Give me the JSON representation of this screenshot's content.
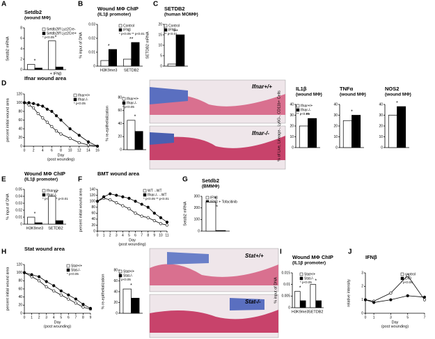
{
  "panel_labels": [
    "A",
    "B",
    "C",
    "D",
    "E",
    "F",
    "G",
    "H",
    "I",
    "J"
  ],
  "images": [
    "Ifnar+/+",
    "Ifnar-/-",
    "Stat+/+",
    "Stat-/-"
  ],
  "chart_data": [
    {
      "type": "bar",
      "title": "Setdb2",
      "subtitle": "(wound MΦ)",
      "ylabel": "Setdb2 mRNA",
      "categories": [
        null,
        "+ IFNβ"
      ],
      "series": [
        {
          "name": "Setdb2f/f Lyz2Cre-",
          "color": "#ffffff",
          "values": [
            1,
            5.5
          ]
        },
        {
          "name": "Setdb2f/f Lyz2Cre+",
          "color": "#000000",
          "values": [
            0.3,
            0.5
          ]
        }
      ],
      "note": "* p<0.05",
      "stars": [
        "*",
        "*"
      ],
      "ylim": [
        0,
        8
      ],
      "yticks": [
        0,
        2,
        4,
        6,
        8
      ]
    },
    {
      "type": "bar",
      "title": "Wound MΦ ChIP",
      "subtitle": "(IL1β promoter)",
      "ylabel": "% input of DNA",
      "categories": [
        "H3K9me3",
        "SETDB2"
      ],
      "series": [
        {
          "name": "Control",
          "color": "#ffffff",
          "values": [
            0.004,
            0.005
          ]
        },
        {
          "name": "IFNβ",
          "color": "#000000",
          "values": [
            0.012,
            0.017
          ]
        }
      ],
      "note": "* p<0.05 ** p<0.01",
      "stars": [
        "*",
        "**"
      ],
      "ylim": [
        0,
        0.03
      ],
      "yticks": [
        0,
        0.01,
        0.02,
        0.03
      ]
    },
    {
      "type": "bar",
      "title": "SETDB2",
      "subtitle": "(human MOMΦ)",
      "ylabel": "SETDB2 mRNA",
      "categories": [
        null
      ],
      "series": [
        {
          "name": "Control",
          "color": "#ffffff",
          "values": [
            1
          ]
        },
        {
          "name": "IFNβ",
          "color": "#000000",
          "values": [
            15
          ]
        }
      ],
      "note": "** p<0.01",
      "stars": [
        "**"
      ],
      "ylim": [
        0,
        20
      ],
      "yticks": [
        0,
        5,
        10,
        15,
        20
      ]
    },
    {
      "type": "line",
      "title": "Ifnar wound area",
      "ylabel": "percent initial wound area",
      "xlabel": "Day",
      "xlabel_sub": "(post wounding)",
      "x": [
        0,
        1,
        2,
        3,
        4,
        5,
        6,
        7,
        8,
        10,
        12,
        14,
        16
      ],
      "series": [
        {
          "name": "Ifnar+/+",
          "color": "#ffffff",
          "values": [
            100,
            95,
            88,
            75,
            65,
            55,
            45,
            35,
            28,
            18,
            8,
            3,
            0
          ]
        },
        {
          "name": "Ifnar-/-",
          "color": "#000000",
          "values": [
            100,
            100,
            98,
            95,
            92,
            85,
            80,
            70,
            60,
            40,
            25,
            10,
            0
          ]
        }
      ],
      "note": "* p<0.05",
      "xlim": [
        0,
        16
      ],
      "xticks": [
        0,
        2,
        4,
        6,
        8,
        10,
        12,
        14,
        16
      ],
      "ylim": [
        0,
        120
      ],
      "yticks": [
        0,
        20,
        40,
        60,
        80,
        100,
        120
      ]
    },
    {
      "type": "bar",
      "ylabel": "% re-epithelialization",
      "categories": [
        null
      ],
      "series": [
        {
          "name": "Ifnar+/+",
          "color": "#ffffff",
          "values": [
            45
          ]
        },
        {
          "name": "Ifnar-/-",
          "color": "#000000",
          "values": [
            28
          ]
        }
      ],
      "note": "* p<0.05",
      "stars": [
        "*"
      ],
      "ylim": [
        0,
        80
      ],
      "yticks": [
        0,
        20,
        40,
        60,
        80
      ]
    },
    {
      "type": "bar",
      "title": "IL1β",
      "subtitle": "(wound MΦ)",
      "ylabel": "% of Live, Lineage-, Ly6G-, CD11b+ Cells",
      "categories": [
        null
      ],
      "series": [
        {
          "name": "Ifnar+/+",
          "color": "#ffffff",
          "values": [
            20
          ]
        },
        {
          "name": "Ifnar-/-",
          "color": "#000000",
          "values": [
            27
          ]
        }
      ],
      "note": "** p<0.01",
      "stars": [
        "**"
      ],
      "ylim": [
        0,
        40
      ],
      "yticks": [
        0,
        10,
        20,
        30,
        40
      ]
    },
    {
      "type": "bar",
      "title": "TNFα",
      "subtitle": "(wound MΦ)",
      "categories": [
        null
      ],
      "series": [
        {
          "color": "#ffffff",
          "values": [
            25
          ]
        },
        {
          "color": "#000000",
          "values": [
            30
          ]
        }
      ],
      "stars": [
        "*"
      ],
      "ylim": [
        0,
        40
      ],
      "yticks": [
        0,
        10,
        20,
        30,
        40
      ]
    },
    {
      "type": "bar",
      "title": "NOS2",
      "subtitle": "(wound MΦ)",
      "categories": [
        null
      ],
      "series": [
        {
          "color": "#ffffff",
          "values": [
            30
          ]
        },
        {
          "color": "#000000",
          "values": [
            38
          ]
        }
      ],
      "stars": [
        "*"
      ],
      "ylim": [
        0,
        40
      ],
      "yticks": [
        0,
        10,
        20,
        30,
        40
      ]
    },
    {
      "type": "bar",
      "title": "Wound MΦ ChIP",
      "subtitle": "(IL1β promoter)",
      "ylabel": "% input of DNA",
      "categories": [
        "H3K9me3",
        "SETDB2"
      ],
      "series": [
        {
          "name": "Ifnar+/+",
          "color": "#ffffff",
          "values": [
            0.01,
            0.04
          ]
        },
        {
          "name": "Ifnar-/-",
          "color": "#000000",
          "values": [
            0.002,
            0.005
          ]
        }
      ],
      "note": "* p<0.05 ** p<0.01",
      "stars": [
        "*",
        "**"
      ],
      "ylim": [
        0,
        0.05
      ],
      "yticks": [
        0,
        0.01,
        0.02,
        0.03,
        0.04,
        0.05
      ]
    },
    {
      "type": "line",
      "title": "BMT wound area",
      "ylabel": "percent initial wound area",
      "xlabel": "Day",
      "xlabel_sub": "(post wounding)",
      "x": [
        0,
        1,
        2,
        3,
        4,
        5,
        6,
        7,
        8,
        9,
        10,
        11
      ],
      "series": [
        {
          "name": "WT→WT",
          "color": "#ffffff",
          "values": [
            100,
            110,
            105,
            95,
            85,
            75,
            60,
            50,
            45,
            35,
            25,
            20
          ]
        },
        {
          "name": "Ifnar-/-→WT",
          "color": "#000000",
          "values": [
            100,
            115,
            125,
            120,
            115,
            110,
            100,
            90,
            80,
            60,
            45,
            30
          ]
        }
      ],
      "note": "* p<0.05 ** p<0.01",
      "xlim": [
        0,
        11
      ],
      "xticks": [
        0,
        1,
        2,
        3,
        4,
        5,
        6,
        7,
        8,
        9,
        10,
        11
      ],
      "ylim": [
        0,
        140
      ],
      "yticks": [
        0,
        20,
        40,
        60,
        80,
        100,
        120,
        140
      ]
    },
    {
      "type": "bar",
      "title": "Setdb2",
      "subtitle": "(BMMΦ)",
      "ylabel": "Setdb2 mRNA",
      "categories": [
        null
      ],
      "series": [
        {
          "name": "IFNβ",
          "color": "#ffffff",
          "values": [
            250
          ]
        },
        {
          "name": "IFNβ + Tofacitinib",
          "color": "#000000",
          "values": [
            5
          ]
        }
      ],
      "note": "* p<0.05",
      "stars": [
        "*"
      ],
      "ylim": [
        0,
        300
      ],
      "yticks": [
        0,
        100,
        200,
        300
      ]
    },
    {
      "type": "line",
      "title": "Stat wound area",
      "ylabel": "percent initial wound area",
      "xlabel": "Day",
      "xlabel_sub": "(post wounding)",
      "x": [
        0,
        1,
        2,
        3,
        4,
        5,
        6,
        7,
        8,
        9
      ],
      "series": [
        {
          "name": "Stat+/+",
          "color": "#ffffff",
          "values": [
            100,
            90,
            80,
            65,
            55,
            45,
            35,
            25,
            15,
            10
          ]
        },
        {
          "name": "Stat-/-",
          "color": "#000000",
          "values": [
            100,
            95,
            90,
            78,
            68,
            55,
            45,
            35,
            22,
            12
          ]
        }
      ],
      "note": "* p<0.05",
      "xlim": [
        0,
        9
      ],
      "xticks": [
        0,
        1,
        2,
        3,
        4,
        5,
        6,
        7,
        8,
        9
      ],
      "ylim": [
        0,
        120
      ],
      "yticks": [
        0,
        20,
        40,
        60,
        80,
        100,
        120
      ]
    },
    {
      "type": "bar",
      "ylabel": "% re-epithelialization",
      "categories": [
        null
      ],
      "series": [
        {
          "name": "Stat+/+",
          "color": "#ffffff",
          "values": [
            45
          ]
        },
        {
          "name": "Stat-/-",
          "color": "#000000",
          "values": [
            28
          ]
        }
      ],
      "note": "* p<0.05",
      "stars": [
        "*"
      ],
      "ylim": [
        0,
        80
      ],
      "yticks": [
        0,
        20,
        40,
        60,
        80
      ]
    },
    {
      "type": "bar",
      "title": "Wound MΦ ChIP",
      "subtitle": "(IL1β promoter)",
      "ylabel": "% input of DNA",
      "categories": [
        "H3K9me3",
        "SETDB2"
      ],
      "series": [
        {
          "name": "Stat+/+",
          "color": "#ffffff",
          "values": [
            0.007,
            0.01
          ]
        },
        {
          "name": "Stat-/-",
          "color": "#000000",
          "values": [
            0.003,
            0.003
          ]
        }
      ],
      "note": "* p<0.05",
      "stars": [
        "*",
        "*"
      ],
      "ylim": [
        0,
        0.015
      ],
      "yticks": [
        0,
        0.005,
        0.01,
        0.015
      ]
    },
    {
      "type": "line",
      "title": "IFNβ",
      "ylabel": "relative intensity",
      "xlabel": "Day",
      "xlabel_sub": "(post wounding)",
      "x": [
        0,
        1,
        3,
        5,
        7
      ],
      "series": [
        {
          "name": "control",
          "color": "#ffffff",
          "values": [
            1,
            0.9,
            1.5,
            2.8,
            1
          ]
        },
        {
          "name": "DIO",
          "color": "#000000",
          "values": [
            1,
            0.8,
            1,
            1.3,
            1.2
          ]
        }
      ],
      "note": "* p<0.05",
      "xlim": [
        0,
        7
      ],
      "xticks": [
        0,
        1,
        3,
        5,
        7
      ],
      "ylim": [
        0,
        3
      ],
      "yticks": [
        0,
        1,
        2,
        3
      ]
    }
  ]
}
